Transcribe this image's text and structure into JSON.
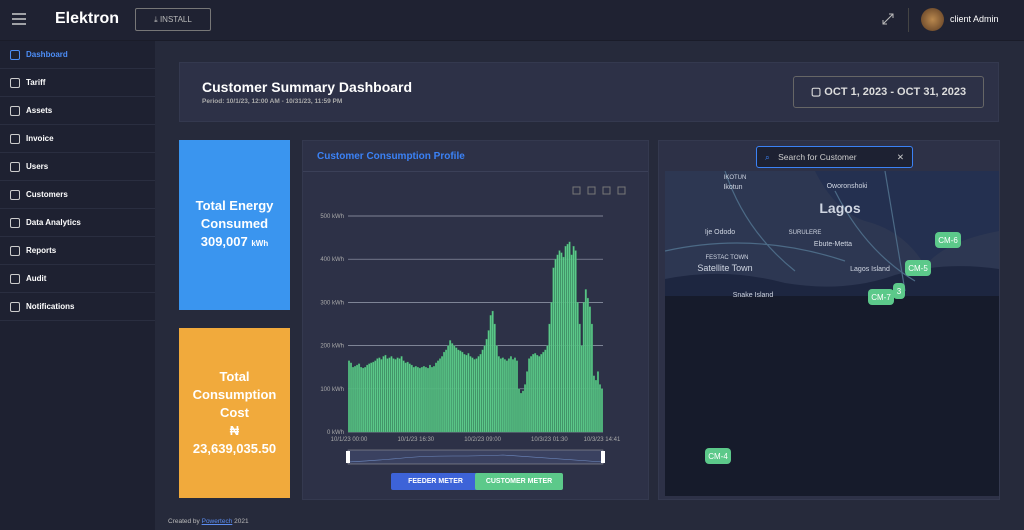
{
  "header": {
    "brand": "Elektron",
    "install": "INSTALL",
    "user": "client Admin"
  },
  "sidebar": {
    "items": [
      "Dashboard",
      "Tariff",
      "Assets",
      "Invoice",
      "Users",
      "Customers",
      "Data Analytics",
      "Reports",
      "Audit",
      "Notifications"
    ]
  },
  "summary": {
    "title": "Customer Summary Dashboard",
    "period": "Period: 10/1/23, 12:00 AM - 10/31/23, 11:59 PM",
    "date_range": "OCT 1, 2023 - OCT 31, 2023"
  },
  "cards": {
    "energy": {
      "label": "Total Energy Consumed",
      "value": "309,007",
      "unit": "kWh"
    },
    "cost": {
      "label": "Total Consumption Cost",
      "currency": "₦",
      "value": "23,639,035.50"
    }
  },
  "chart_data": {
    "type": "bar",
    "title": "Customer Consumption Profile",
    "color": "#5cc98a",
    "ylim": [
      0,
      500
    ],
    "yticks": [
      {
        "value": 0,
        "label": "0 kWh"
      },
      {
        "value": 100,
        "label": "100 kWh"
      },
      {
        "value": 200,
        "label": "200 kWh"
      },
      {
        "value": 300,
        "label": "300 kWh"
      },
      {
        "value": 400,
        "label": "400 kWh"
      },
      {
        "value": 500,
        "label": "500 kWh"
      }
    ],
    "grid": true,
    "categories": [
      "10/1/23 00:00",
      null,
      null,
      null,
      null,
      null,
      null,
      null,
      null,
      null,
      null,
      null,
      null,
      null,
      null,
      null,
      null,
      null,
      null,
      null,
      null,
      null,
      null,
      null,
      null,
      null,
      null,
      null,
      null,
      null,
      null,
      null,
      null,
      "10/1/23 16:30",
      null,
      null,
      null,
      null,
      null,
      null,
      null,
      null,
      null,
      null,
      null,
      null,
      null,
      null,
      null,
      null,
      null,
      null,
      null,
      null,
      null,
      null,
      null,
      null,
      null,
      null,
      null,
      null,
      null,
      null,
      null,
      null,
      "10/2/23 09:00",
      null,
      null,
      null,
      null,
      null,
      null,
      null,
      null,
      null,
      null,
      null,
      null,
      null,
      null,
      null,
      null,
      null,
      null,
      null,
      null,
      null,
      null,
      null,
      null,
      null,
      null,
      null,
      null,
      null,
      null,
      null,
      null,
      "10/3/23 01:30",
      null,
      null,
      null,
      null,
      null,
      null,
      null,
      null,
      null,
      null,
      null,
      null,
      null,
      null,
      null,
      null,
      null,
      null,
      null,
      null,
      null,
      null,
      null,
      null,
      null,
      "10/3/23 14:41"
    ],
    "values": [
      165,
      160,
      150,
      152,
      155,
      158,
      150,
      148,
      150,
      155,
      158,
      160,
      162,
      165,
      170,
      172,
      168,
      175,
      178,
      170,
      172,
      175,
      170,
      168,
      172,
      170,
      175,
      165,
      160,
      162,
      158,
      155,
      150,
      152,
      150,
      148,
      150,
      152,
      150,
      148,
      155,
      150,
      152,
      160,
      165,
      170,
      175,
      185,
      190,
      200,
      212,
      205,
      200,
      195,
      190,
      188,
      185,
      180,
      178,
      182,
      175,
      172,
      168,
      170,
      175,
      180,
      190,
      200,
      215,
      235,
      270,
      280,
      250,
      200,
      175,
      170,
      172,
      168,
      165,
      170,
      175,
      168,
      172,
      165,
      100,
      90,
      95,
      110,
      140,
      170,
      175,
      180,
      182,
      178,
      175,
      180,
      185,
      190,
      200,
      250,
      300,
      380,
      400,
      410,
      420,
      415,
      405,
      430,
      435,
      440,
      410,
      430,
      420,
      300,
      250,
      200,
      300,
      330,
      310,
      290,
      250,
      130,
      120,
      140,
      110,
      100
    ],
    "buttons": [
      "FEEDER METER",
      "CUSTOMER METER"
    ]
  },
  "map": {
    "search": "Search for Customer",
    "places": [
      "Lagos",
      "IKOTUN",
      "Ikotun",
      "Oworonshoki",
      "Ije Ododo",
      "SURULERE",
      "Ebute-Metta",
      "FESTAC TOWN",
      "Satellite Town",
      "Lagos Island",
      "Snake Island"
    ],
    "markers": [
      "CM-6",
      "CM-5",
      "CM-7",
      "3",
      "CM-4"
    ]
  },
  "footer": {
    "created": "Created by",
    "company": "Powertech",
    "year": "2021"
  }
}
